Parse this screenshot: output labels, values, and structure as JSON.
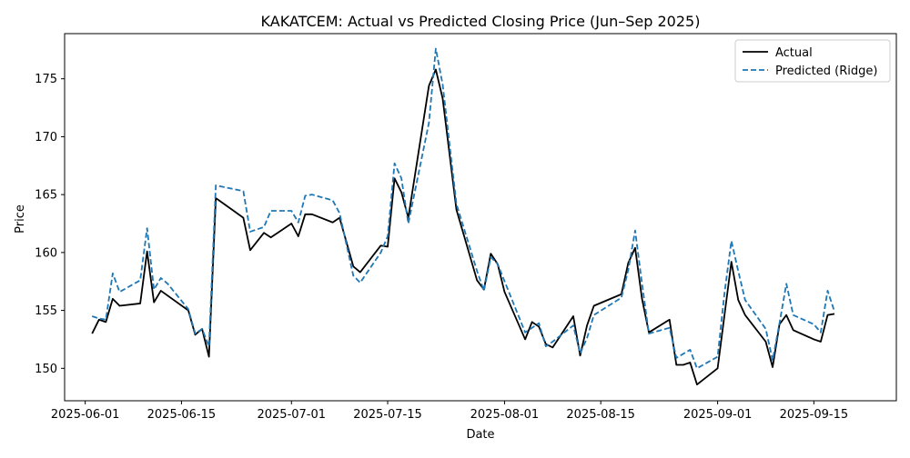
{
  "chart_data": {
    "type": "line",
    "title": "KAKATCEM: Actual vs Predicted Closing Price (Jun–Sep 2025)",
    "xlabel": "Date",
    "ylabel": "Price",
    "xlim": [
      "2025-05-29",
      "2025-09-27"
    ],
    "ylim": [
      147.2,
      178.9
    ],
    "x_ticks": [
      "2025-06-01",
      "2025-06-15",
      "2025-07-01",
      "2025-07-15",
      "2025-08-01",
      "2025-08-15",
      "2025-09-01",
      "2025-09-15"
    ],
    "y_ticks": [
      150,
      155,
      160,
      165,
      170,
      175
    ],
    "grid": false,
    "legend": "top-right",
    "series": [
      {
        "name": "Actual",
        "color": "#000000",
        "style": "solid",
        "points": [
          [
            "2025-06-02",
            153.0
          ],
          [
            "2025-06-03",
            154.2
          ],
          [
            "2025-06-04",
            154.0
          ],
          [
            "2025-06-05",
            156.0
          ],
          [
            "2025-06-06",
            155.4
          ],
          [
            "2025-06-09",
            155.6
          ],
          [
            "2025-06-10",
            160.1
          ],
          [
            "2025-06-11",
            155.7
          ],
          [
            "2025-06-12",
            156.7
          ],
          [
            "2025-06-16",
            155.0
          ],
          [
            "2025-06-17",
            152.9
          ],
          [
            "2025-06-18",
            153.4
          ],
          [
            "2025-06-19",
            151.0
          ],
          [
            "2025-06-20",
            164.7
          ],
          [
            "2025-06-24",
            163.0
          ],
          [
            "2025-06-25",
            160.2
          ],
          [
            "2025-06-27",
            161.7
          ],
          [
            "2025-06-28",
            161.3
          ],
          [
            "2025-07-01",
            162.5
          ],
          [
            "2025-07-02",
            161.4
          ],
          [
            "2025-07-03",
            163.3
          ],
          [
            "2025-07-04",
            163.3
          ],
          [
            "2025-07-07",
            162.6
          ],
          [
            "2025-07-08",
            163.0
          ],
          [
            "2025-07-10",
            158.8
          ],
          [
            "2025-07-11",
            158.3
          ],
          [
            "2025-07-14",
            160.6
          ],
          [
            "2025-07-15",
            160.5
          ],
          [
            "2025-07-16",
            166.4
          ],
          [
            "2025-07-17",
            165.2
          ],
          [
            "2025-07-18",
            163.0
          ],
          [
            "2025-07-21",
            174.4
          ],
          [
            "2025-07-22",
            175.8
          ],
          [
            "2025-07-23",
            173.3
          ],
          [
            "2025-07-25",
            163.7
          ],
          [
            "2025-07-28",
            157.6
          ],
          [
            "2025-07-29",
            156.8
          ],
          [
            "2025-07-30",
            159.9
          ],
          [
            "2025-07-31",
            159.0
          ],
          [
            "2025-08-01",
            156.6
          ],
          [
            "2025-08-04",
            152.5
          ],
          [
            "2025-08-05",
            154.0
          ],
          [
            "2025-08-06",
            153.6
          ],
          [
            "2025-08-07",
            152.1
          ],
          [
            "2025-08-08",
            151.8
          ],
          [
            "2025-08-11",
            154.5
          ],
          [
            "2025-08-12",
            151.1
          ],
          [
            "2025-08-13",
            153.7
          ],
          [
            "2025-08-14",
            155.4
          ],
          [
            "2025-08-18",
            156.4
          ],
          [
            "2025-08-19",
            159.1
          ],
          [
            "2025-08-20",
            160.4
          ],
          [
            "2025-08-21",
            156.0
          ],
          [
            "2025-08-22",
            153.1
          ],
          [
            "2025-08-25",
            154.2
          ],
          [
            "2025-08-26",
            150.3
          ],
          [
            "2025-08-27",
            150.3
          ],
          [
            "2025-08-28",
            150.5
          ],
          [
            "2025-08-29",
            148.6
          ],
          [
            "2025-09-01",
            150.0
          ],
          [
            "2025-09-02",
            154.6
          ],
          [
            "2025-09-03",
            159.2
          ],
          [
            "2025-09-04",
            155.9
          ],
          [
            "2025-09-05",
            154.6
          ],
          [
            "2025-09-08",
            152.3
          ],
          [
            "2025-09-09",
            150.1
          ],
          [
            "2025-09-10",
            153.8
          ],
          [
            "2025-09-11",
            154.6
          ],
          [
            "2025-09-12",
            153.3
          ],
          [
            "2025-09-15",
            152.5
          ],
          [
            "2025-09-16",
            152.3
          ],
          [
            "2025-09-17",
            154.6
          ],
          [
            "2025-09-18",
            154.7
          ]
        ]
      },
      {
        "name": "Predicted (Ridge)",
        "color": "#1f77b4",
        "style": "dashed",
        "points": [
          [
            "2025-06-02",
            154.5
          ],
          [
            "2025-06-03",
            154.3
          ],
          [
            "2025-06-04",
            154.2
          ],
          [
            "2025-06-05",
            158.2
          ],
          [
            "2025-06-06",
            156.6
          ],
          [
            "2025-06-09",
            157.6
          ],
          [
            "2025-06-10",
            162.1
          ],
          [
            "2025-06-11",
            156.8
          ],
          [
            "2025-06-12",
            157.8
          ],
          [
            "2025-06-13",
            157.3
          ],
          [
            "2025-06-16",
            155.1
          ],
          [
            "2025-06-17",
            153.0
          ],
          [
            "2025-06-18",
            153.4
          ],
          [
            "2025-06-19",
            151.9
          ],
          [
            "2025-06-20",
            165.8
          ],
          [
            "2025-06-24",
            165.3
          ],
          [
            "2025-06-25",
            161.8
          ],
          [
            "2025-06-27",
            162.2
          ],
          [
            "2025-06-28",
            163.6
          ],
          [
            "2025-07-01",
            163.6
          ],
          [
            "2025-07-02",
            162.6
          ],
          [
            "2025-07-03",
            164.9
          ],
          [
            "2025-07-04",
            165.0
          ],
          [
            "2025-07-07",
            164.5
          ],
          [
            "2025-07-08",
            163.4
          ],
          [
            "2025-07-10",
            158.0
          ],
          [
            "2025-07-11",
            157.4
          ],
          [
            "2025-07-14",
            160.0
          ],
          [
            "2025-07-15",
            161.4
          ],
          [
            "2025-07-16",
            167.7
          ],
          [
            "2025-07-17",
            166.4
          ],
          [
            "2025-07-18",
            162.5
          ],
          [
            "2025-07-21",
            171.2
          ],
          [
            "2025-07-22",
            177.6
          ],
          [
            "2025-07-23",
            174.5
          ],
          [
            "2025-07-25",
            164.2
          ],
          [
            "2025-07-28",
            158.4
          ],
          [
            "2025-07-29",
            156.7
          ],
          [
            "2025-07-30",
            159.6
          ],
          [
            "2025-07-31",
            159.0
          ],
          [
            "2025-08-04",
            153.1
          ],
          [
            "2025-08-05",
            153.5
          ],
          [
            "2025-08-06",
            153.9
          ],
          [
            "2025-08-07",
            151.9
          ],
          [
            "2025-08-08",
            152.3
          ],
          [
            "2025-08-11",
            153.7
          ],
          [
            "2025-08-12",
            151.3
          ],
          [
            "2025-08-13",
            152.6
          ],
          [
            "2025-08-14",
            154.6
          ],
          [
            "2025-08-18",
            156.1
          ],
          [
            "2025-08-19",
            158.5
          ],
          [
            "2025-08-20",
            161.9
          ],
          [
            "2025-08-21",
            157.3
          ],
          [
            "2025-08-22",
            153.0
          ],
          [
            "2025-08-25",
            153.5
          ],
          [
            "2025-08-26",
            150.9
          ],
          [
            "2025-08-28",
            151.6
          ],
          [
            "2025-08-29",
            150.0
          ],
          [
            "2025-09-01",
            151.0
          ],
          [
            "2025-09-02",
            156.5
          ],
          [
            "2025-09-03",
            161.0
          ],
          [
            "2025-09-04",
            158.4
          ],
          [
            "2025-09-05",
            155.9
          ],
          [
            "2025-09-08",
            153.4
          ],
          [
            "2025-09-09",
            150.7
          ],
          [
            "2025-09-10",
            153.9
          ],
          [
            "2025-09-11",
            157.3
          ],
          [
            "2025-09-12",
            154.6
          ],
          [
            "2025-09-15",
            153.8
          ],
          [
            "2025-09-16",
            153.1
          ],
          [
            "2025-09-17",
            156.7
          ],
          [
            "2025-09-18",
            154.9
          ]
        ]
      }
    ]
  }
}
